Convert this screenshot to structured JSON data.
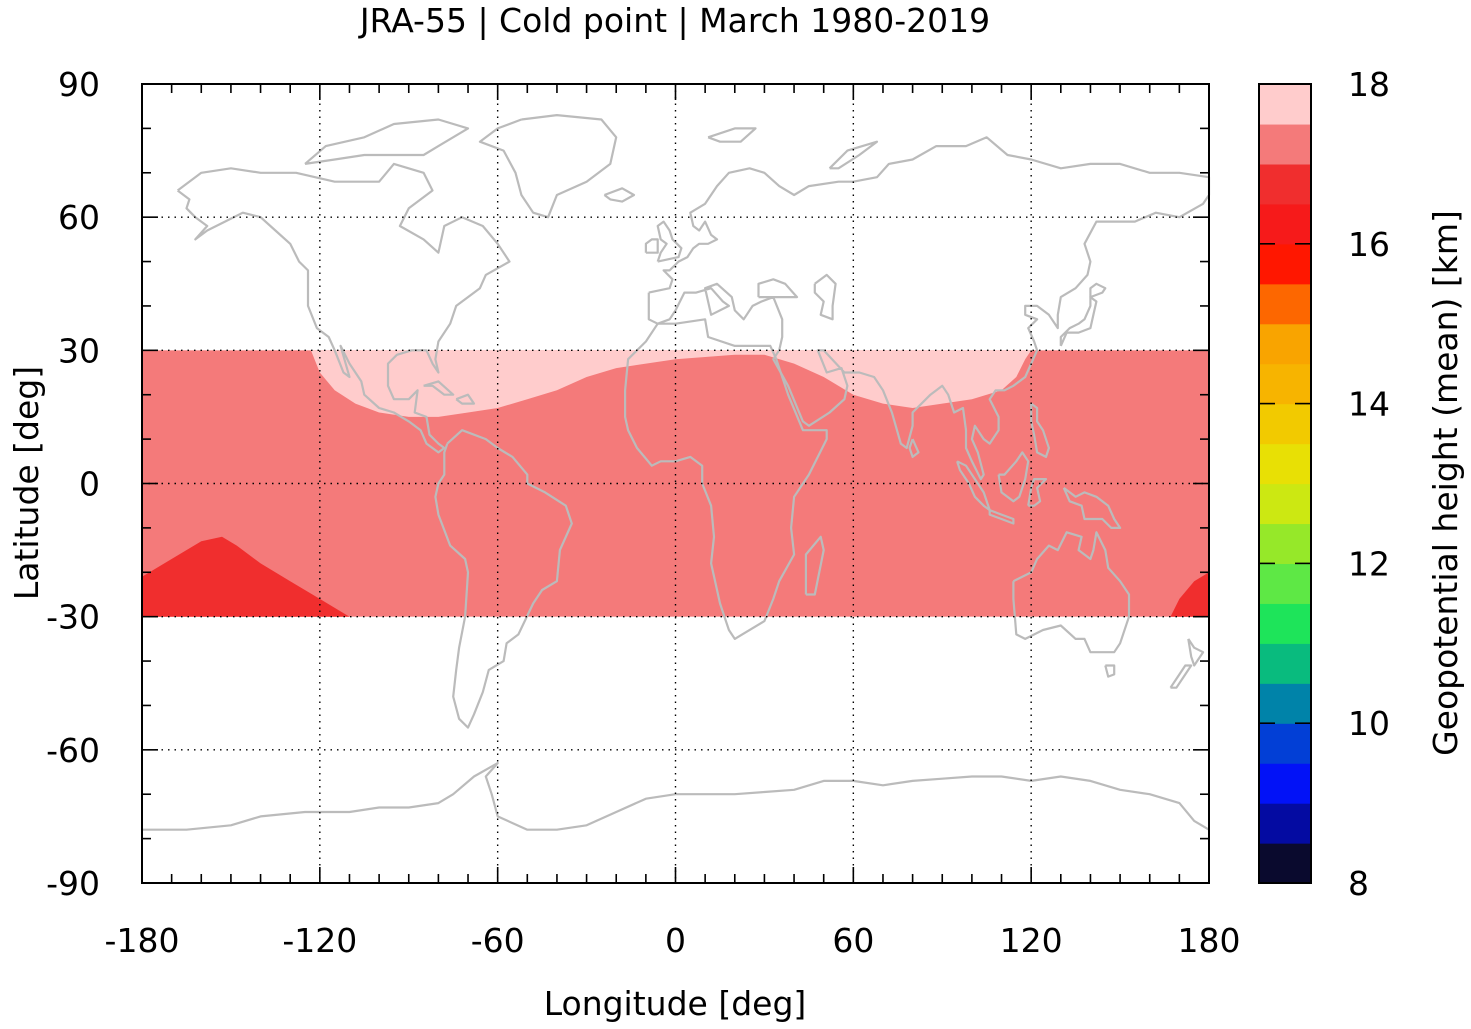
{
  "chart_data": {
    "type": "heatmap",
    "title": "JRA-55 | Cold point | March 1980-2019",
    "xlabel": "Longitude [deg]",
    "ylabel": "Latitude [deg]",
    "xlim": [
      -180,
      180
    ],
    "ylim": [
      -90,
      90
    ],
    "xticks": [
      -180,
      -120,
      -60,
      0,
      60,
      120,
      180
    ],
    "yticks": [
      -90,
      -60,
      -30,
      0,
      30,
      60,
      90
    ],
    "grid": true,
    "data_band_lat": [
      -30,
      30
    ],
    "background_value_km": 17.25,
    "regions": [
      {
        "label": "high cold point (northern subtropics)",
        "value_km": 17.75,
        "polygon": [
          [
            -123,
            30
          ],
          [
            -120,
            25
          ],
          [
            -115,
            21
          ],
          [
            -108,
            18
          ],
          [
            -100,
            16
          ],
          [
            -90,
            15
          ],
          [
            -80,
            15
          ],
          [
            -70,
            16
          ],
          [
            -60,
            17
          ],
          [
            -50,
            19
          ],
          [
            -40,
            21
          ],
          [
            -30,
            24
          ],
          [
            -20,
            26
          ],
          [
            -10,
            27
          ],
          [
            0,
            28
          ],
          [
            10,
            28.5
          ],
          [
            20,
            29
          ],
          [
            30,
            29
          ],
          [
            40,
            27
          ],
          [
            50,
            24
          ],
          [
            60,
            20
          ],
          [
            70,
            18
          ],
          [
            80,
            17
          ],
          [
            90,
            18
          ],
          [
            100,
            19
          ],
          [
            110,
            21
          ],
          [
            115,
            24
          ],
          [
            118,
            28
          ],
          [
            120,
            30
          ]
        ]
      },
      {
        "label": "high cold point (Atlantic patch)",
        "value_km": 17.75,
        "polygon": [
          [
            -58,
            30
          ],
          [
            -57,
            29
          ],
          [
            -40,
            29
          ],
          [
            -35,
            30
          ]
        ]
      },
      {
        "label": "high cold point (SE Asia patch)",
        "value_km": 17.75,
        "polygon": [
          [
            104,
            27
          ],
          [
            105,
            26
          ],
          [
            106,
            28
          ],
          [
            105,
            29
          ]
        ]
      },
      {
        "label": "low cold point (South Pacific)",
        "value_km": 16.75,
        "polygon": [
          [
            -180,
            -30
          ],
          [
            -180,
            -21
          ],
          [
            -170,
            -17
          ],
          [
            -160,
            -13
          ],
          [
            -153,
            -12
          ],
          [
            -148,
            -14
          ],
          [
            -140,
            -18
          ],
          [
            -130,
            -22
          ],
          [
            -120,
            -26
          ],
          [
            -110,
            -30
          ]
        ]
      },
      {
        "label": "low cold point (SW Pacific edge)",
        "value_km": 16.75,
        "polygon": [
          [
            167,
            -30
          ],
          [
            170,
            -26
          ],
          [
            175,
            -22
          ],
          [
            180,
            -20
          ],
          [
            180,
            -30
          ]
        ]
      }
    ],
    "colorbar": {
      "label": "Geopotential height (mean) [km]",
      "min": 8,
      "max": 18,
      "ticks": [
        8,
        10,
        12,
        14,
        16,
        18
      ],
      "colors": [
        "#0a0a2e",
        "#040ba2",
        "#0212f7",
        "#023fd6",
        "#0083a9",
        "#09bb7e",
        "#1ee45a",
        "#5ee845",
        "#96e829",
        "#cce812",
        "#e8e005",
        "#f2ca00",
        "#f7b400",
        "#f9a400",
        "#fd6700",
        "#ff1700",
        "#f61a1a",
        "#f02e2e",
        "#f47a7a",
        "#ffcccc"
      ]
    },
    "coastline_color": "#bbbbbb"
  }
}
